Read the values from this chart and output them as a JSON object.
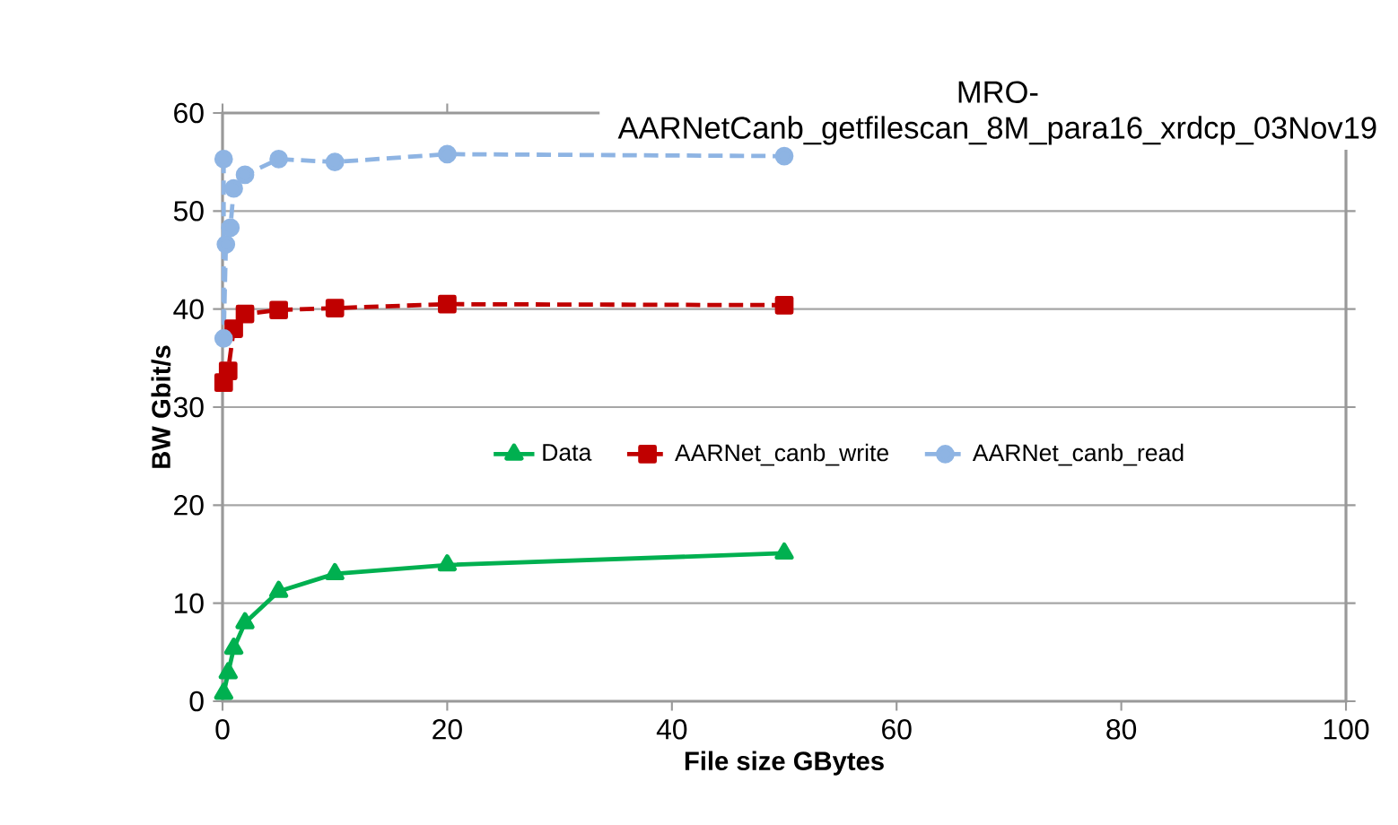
{
  "chart_data": {
    "type": "line",
    "title": "MRO-AARNetCanb_getfilescan_8M_para16_xrdcp_03Nov19",
    "xlabel": "File size GBytes",
    "ylabel": "BW Gbit/s",
    "xlim": [
      0,
      100
    ],
    "xticks": [
      0,
      20,
      40,
      60,
      80,
      100
    ],
    "ylim": [
      0,
      60
    ],
    "yticks": [
      0,
      10,
      20,
      30,
      40,
      50,
      60
    ],
    "grid": "y",
    "legend": "center",
    "series": [
      {
        "name": "Data",
        "color": "#00b050",
        "marker": "triangle",
        "line_style": "solid",
        "x": [
          0.1,
          0.5,
          1,
          2,
          5,
          10,
          20,
          50
        ],
        "values": [
          0.8,
          2.9,
          5.4,
          8.0,
          11.2,
          13.0,
          13.9,
          15.1
        ]
      },
      {
        "name": "AARNet_canb_write",
        "color": "#c00000",
        "marker": "square",
        "line_style": "dashed",
        "x": [
          0.1,
          0.5,
          1,
          2,
          5,
          10,
          20,
          50
        ],
        "values": [
          32.5,
          33.7,
          38.0,
          39.5,
          39.9,
          40.1,
          40.5,
          40.4
        ]
      },
      {
        "name": "AARNet_canb_read",
        "color": "#8eb4e3",
        "marker": "circle",
        "line_style": "dashed",
        "x": [
          0.1,
          0.1,
          0.3,
          0.7,
          1,
          2,
          5,
          10,
          20,
          50
        ],
        "values": [
          55.3,
          37.0,
          46.6,
          48.3,
          52.3,
          53.7,
          55.3,
          55.0,
          55.8,
          55.6
        ]
      }
    ]
  }
}
